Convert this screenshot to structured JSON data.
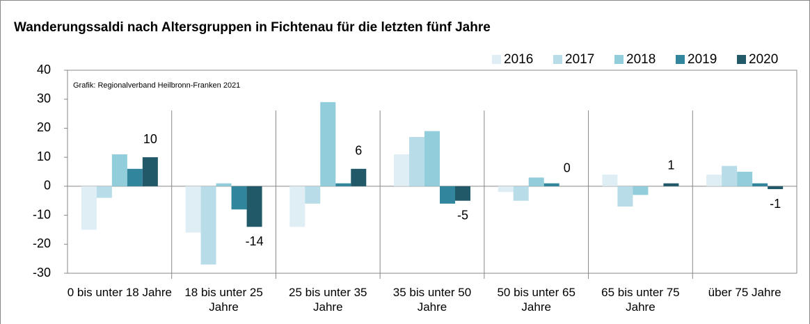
{
  "chart_data": {
    "type": "bar",
    "title": "Wanderungssaldi nach Altersgruppen in Fichtenau für die letzten fünf Jahre",
    "annotation": "Grafik: Regionalverband Heilbronn-Franken 2021",
    "categories": [
      "0 bis unter 18 Jahre",
      "18 bis unter 25 Jahre",
      "25 bis unter 35 Jahre",
      "35 bis unter 50 Jahre",
      "50 bis unter 65 Jahre",
      "65 bis unter 75 Jahre",
      "über 75 Jahre"
    ],
    "series": [
      {
        "name": "2016",
        "color": "#deeef4",
        "values": [
          -15,
          -16,
          -14,
          11,
          -2,
          4,
          4
        ]
      },
      {
        "name": "2017",
        "color": "#b8dde8",
        "values": [
          -4,
          -27,
          -6,
          17,
          -5,
          -7,
          7
        ]
      },
      {
        "name": "2018",
        "color": "#92cddc",
        "values": [
          11,
          1,
          29,
          19,
          3,
          -3,
          5
        ]
      },
      {
        "name": "2019",
        "color": "#31859c",
        "values": [
          6,
          -8,
          1,
          -6,
          1,
          0,
          1
        ]
      },
      {
        "name": "2020",
        "color": "#215968",
        "values": [
          10,
          -14,
          6,
          -5,
          0,
          1,
          -1
        ],
        "data_labels": true
      }
    ],
    "ylim": [
      -30,
      40
    ],
    "yticks": [
      -30,
      -20,
      -10,
      0,
      10,
      20,
      30,
      40
    ],
    "legend": "top-right"
  }
}
